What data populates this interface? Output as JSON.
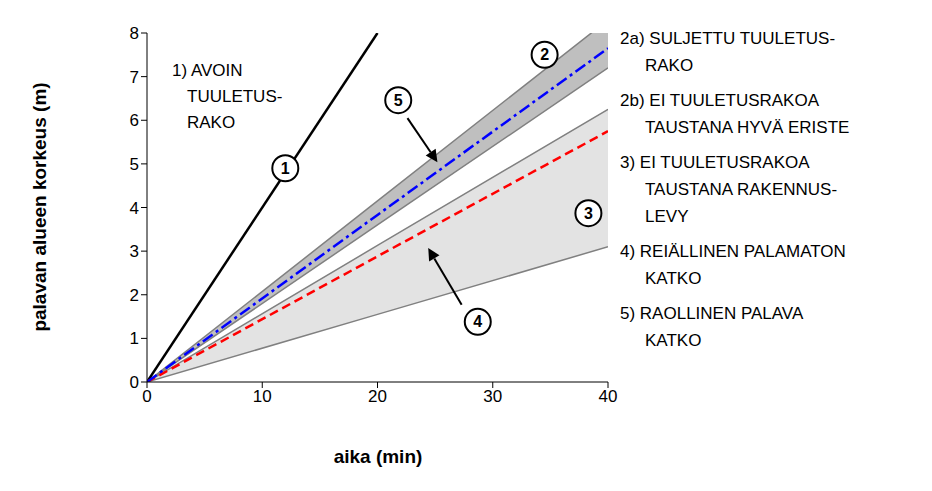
{
  "chart_data": {
    "type": "line",
    "x_label": "aika (min)",
    "y_label": "palavan alueen korkeus (m)",
    "x": [
      0,
      20,
      40
    ],
    "xlim": [
      0,
      40
    ],
    "xticks": [
      0,
      10,
      20,
      30,
      40
    ],
    "ylim": [
      0,
      8
    ],
    "yticks": [
      0,
      1,
      2,
      3,
      4,
      5,
      6,
      7,
      8
    ],
    "grid": false,
    "series": [
      {
        "name": "2",
        "type": "band",
        "color": "#bfbfbf",
        "lower": [
          0,
          3.6,
          7.2
        ],
        "upper": [
          0,
          4.15,
          8.3
        ]
      },
      {
        "name": "3",
        "type": "band",
        "color": "#e3e3e3",
        "lower": [
          0,
          1.55,
          3.1
        ],
        "upper": [
          0,
          3.13,
          6.25
        ]
      },
      {
        "name": "1",
        "type": "line",
        "color": "#000000",
        "line_style": "solid",
        "values": [
          0,
          8,
          null
        ]
      },
      {
        "name": "4",
        "type": "line",
        "color": "#ff0000",
        "line_style": "dashed",
        "values": [
          0,
          2.88,
          5.75
        ]
      },
      {
        "name": "5",
        "type": "line",
        "color": "#0000ff",
        "line_style": "dashdot",
        "values": [
          0,
          3.83,
          7.65
        ]
      }
    ],
    "plot_note": [
      "1) AVOIN",
      "TUULETUS-",
      "RAKO"
    ],
    "notes": [
      [
        "2a) SULJETTU TUULETUS-",
        "RAKO"
      ],
      [
        "2b) EI TUULETUSRAKOA",
        "TAUSTANA HYVÄ ERISTE"
      ],
      [
        "3) EI TUULETUSRAKOA",
        "TAUSTANA RAKENNUS-",
        "LEVY"
      ],
      [
        "4) REIÄLLINEN PALAMATON",
        "KATKO"
      ],
      [
        "5) RAOLLINEN PALAVA",
        "KATKO"
      ]
    ]
  }
}
